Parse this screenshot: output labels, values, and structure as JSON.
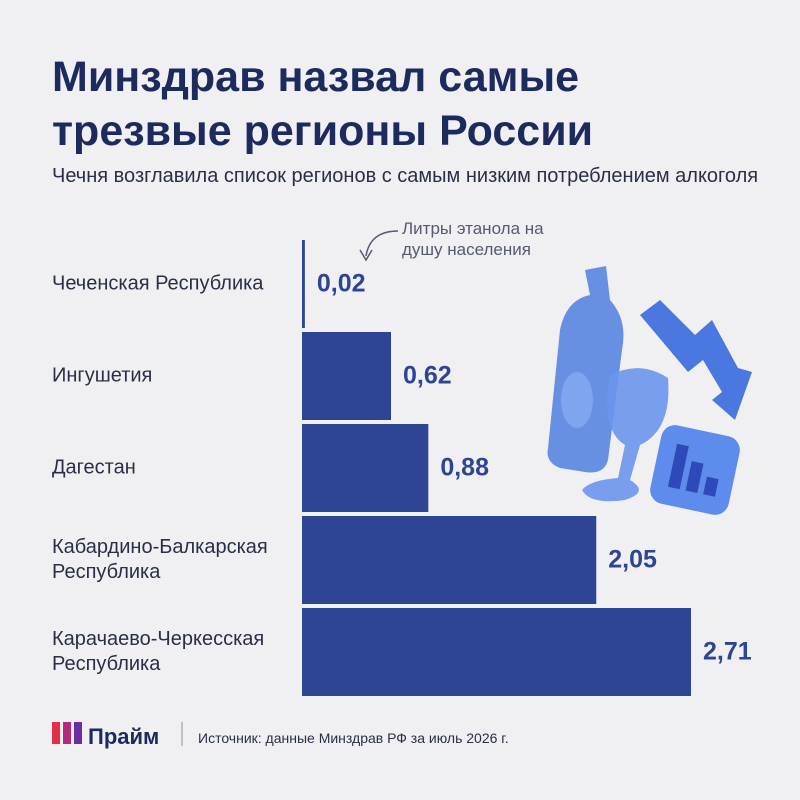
{
  "title": "Минздрав назвал самые трезвые регионы России",
  "subtitle": "Чечня возглавила список регионов с самым низким потреблением алкоголя",
  "chart_data": {
    "type": "bar",
    "orientation": "horizontal",
    "annotation": "Литры этанола на душу населения",
    "categories": [
      "Чеченская Республика",
      "Ингушетия",
      "Дагестан",
      "Кабардино-Балкарская Республика",
      "Карачаево-Черкесская Республика"
    ],
    "values": [
      0.02,
      0.62,
      0.88,
      2.05,
      2.71
    ],
    "value_labels": [
      "0,02",
      "0,62",
      "0,88",
      "2,05",
      "2,71"
    ],
    "color": "#2e4494"
  },
  "footer": {
    "brand": "Прайм",
    "source": "Источник: данные Минздрав РФ за июль 2026 г."
  }
}
